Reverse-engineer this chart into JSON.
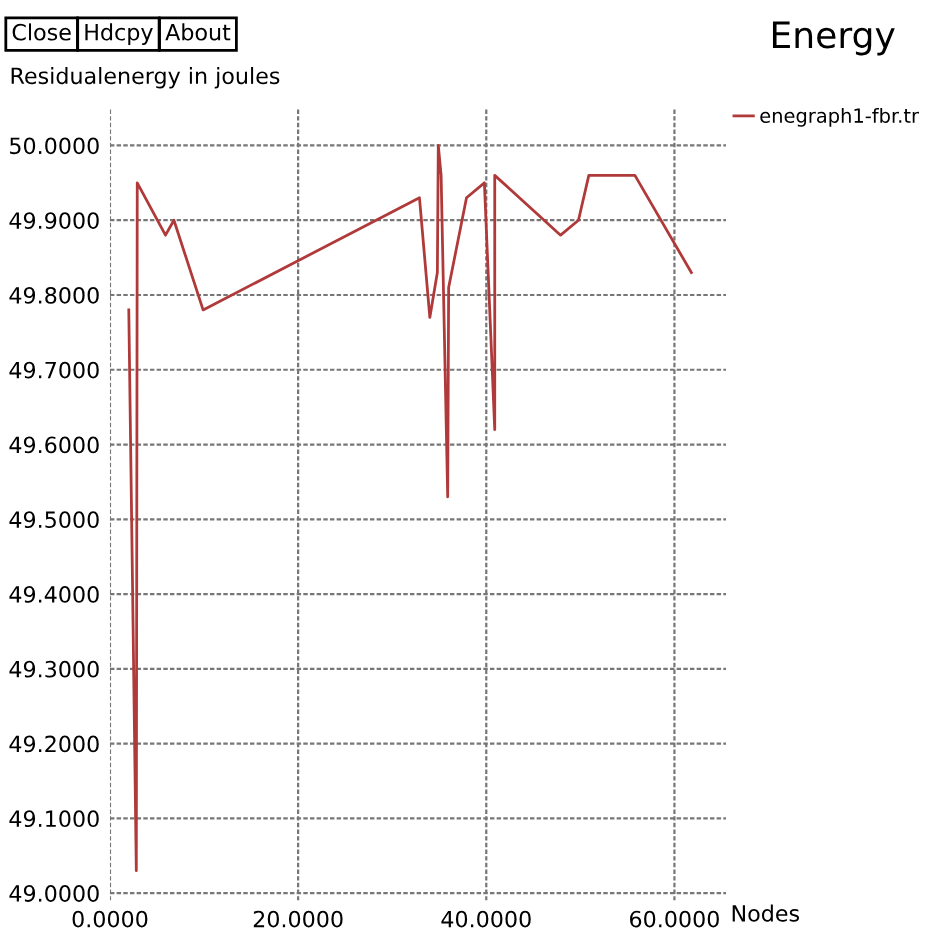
{
  "chart_data": {
    "type": "line",
    "title": "Energy",
    "xlabel": "Nodes",
    "ylabel": "Residualenergy in joules",
    "annotations": [
      "Close",
      "Hdcpy",
      "About"
    ],
    "series": [
      {
        "name": "enegraph1-fbr.tr",
        "color": "#b03a3a",
        "x": [
          2.0,
          2.4,
          2.8,
          2.9,
          5.9,
          6.8,
          9.9,
          32.9,
          34.0,
          34.8,
          34.9,
          35.2,
          35.9,
          36.0,
          37.9,
          39.8,
          40.9,
          40.9,
          47.9,
          49.8,
          50.9,
          55.8,
          61.8
        ],
        "values": [
          49.78,
          49.41,
          49.03,
          49.95,
          49.88,
          49.9,
          49.78,
          49.93,
          49.77,
          49.83,
          50.0,
          49.96,
          49.53,
          49.81,
          49.93,
          49.95,
          49.62,
          49.96,
          49.88,
          49.9,
          49.96,
          49.96,
          49.83
        ]
      }
    ],
    "xlim": [
      0,
      65.5
    ],
    "ylim": [
      48.99,
      50.05
    ],
    "xticks": [
      {
        "value": 0,
        "label": "0.0000"
      },
      {
        "value": 20,
        "label": "20.0000"
      },
      {
        "value": 40,
        "label": "40.0000"
      },
      {
        "value": 60,
        "label": "60.0000"
      }
    ],
    "yticks": [
      {
        "value": 49.0,
        "label": "49.0000"
      },
      {
        "value": 49.1,
        "label": "49.1000"
      },
      {
        "value": 49.2,
        "label": "49.2000"
      },
      {
        "value": 49.3,
        "label": "49.3000"
      },
      {
        "value": 49.4,
        "label": "49.4000"
      },
      {
        "value": 49.5,
        "label": "49.5000"
      },
      {
        "value": 49.6,
        "label": "49.6000"
      },
      {
        "value": 49.7,
        "label": "49.7000"
      },
      {
        "value": 49.8,
        "label": "49.8000"
      },
      {
        "value": 49.9,
        "label": "49.9000"
      },
      {
        "value": 50.0,
        "label": "50.0000"
      }
    ],
    "grid": true,
    "legend": "top right",
    "marker": "none",
    "line_style": "solid"
  }
}
